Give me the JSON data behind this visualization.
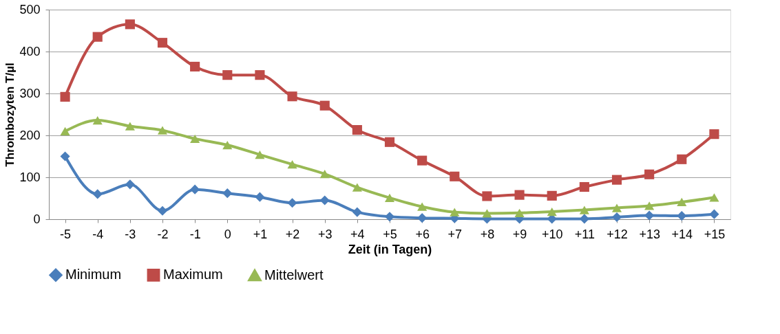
{
  "chart_data": {
    "type": "line",
    "xlabel": "Zeit (in Tagen)",
    "ylabel": "Thrombozyten T/µl",
    "categories": [
      "-5",
      "-4",
      "-3",
      "-2",
      "-1",
      "0",
      "+1",
      "+2",
      "+3",
      "+4",
      "+5",
      "+6",
      "+7",
      "+8",
      "+9",
      "+10",
      "+11",
      "+12",
      "+13",
      "+14",
      "+15"
    ],
    "series": [
      {
        "name": "Minimum",
        "color": "#4a7ebb",
        "marker": "diamond",
        "values": [
          150,
          60,
          83,
          20,
          71,
          62,
          53,
          39,
          45,
          17,
          6,
          3,
          2,
          1,
          1,
          1,
          1,
          5,
          9,
          8,
          12
        ]
      },
      {
        "name": "Maximum",
        "color": "#be4b48",
        "marker": "square",
        "values": [
          292,
          435,
          465,
          421,
          364,
          344,
          344,
          293,
          271,
          213,
          184,
          140,
          102,
          55,
          58,
          56,
          77,
          94,
          107,
          143,
          203
        ]
      },
      {
        "name": "Mittelwert",
        "color": "#98b954",
        "marker": "triangle",
        "values": [
          210,
          236,
          222,
          212,
          192,
          177,
          154,
          131,
          108,
          76,
          51,
          30,
          17,
          14,
          15,
          18,
          22,
          27,
          32,
          41,
          52
        ]
      }
    ],
    "ylim": [
      0,
      500
    ],
    "yticks": [
      0,
      100,
      200,
      300,
      400,
      500
    ],
    "grid": "y",
    "legend": "bottom"
  }
}
